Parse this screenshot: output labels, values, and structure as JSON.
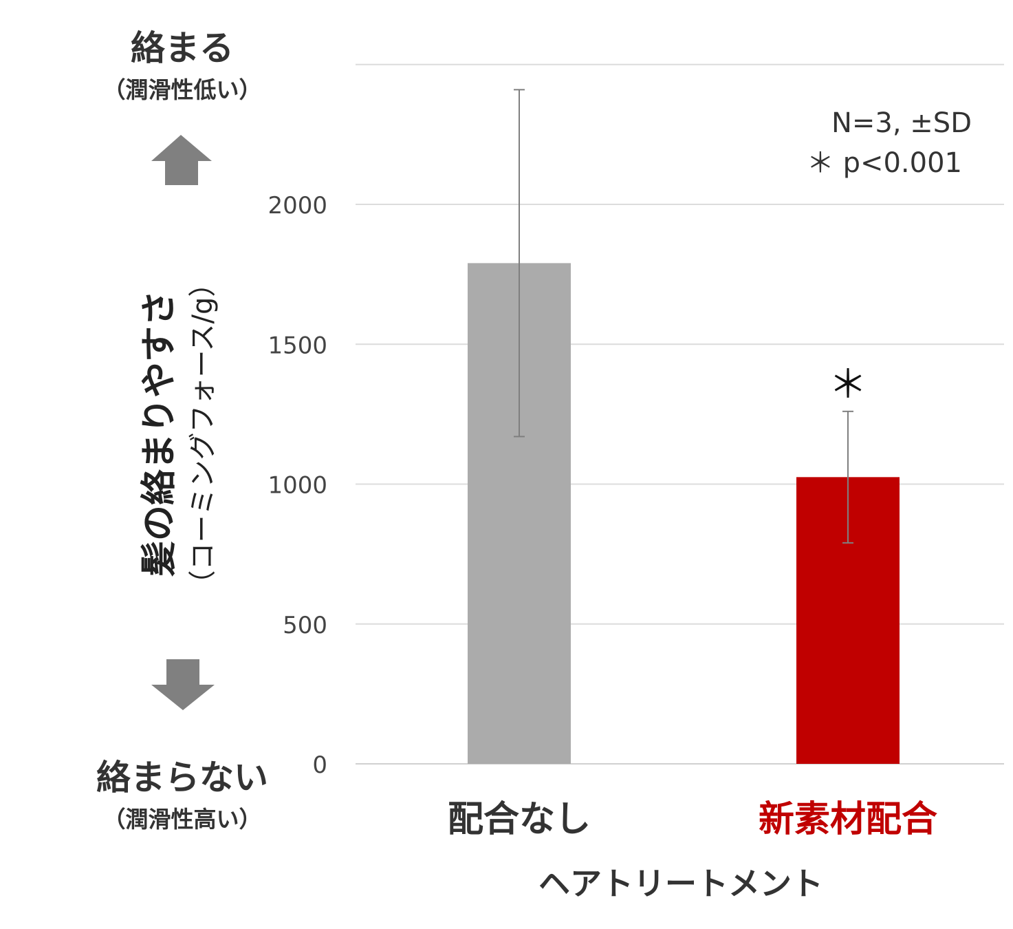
{
  "left_panel": {
    "top_label": "絡まる",
    "top_sub": "（潤滑性低い）",
    "bottom_label": "絡まらない",
    "bottom_sub": "（潤滑性高い）",
    "up_arrow_icon": "up-arrow-icon",
    "down_arrow_icon": "down-arrow-icon",
    "arrow_color": "#808080"
  },
  "y_axis": {
    "label": "髪の絡まりやすさ",
    "label_sub": "（コーミングフォース/g）"
  },
  "annotation": {
    "line1": "N=3, ±SD",
    "line2": "＊ p<0.001"
  },
  "chart_data": {
    "type": "bar",
    "title": "",
    "xlabel": "ヘアトリートメント",
    "ylabel": "髪の絡まりやすさ（コーミングフォース/g）",
    "categories": [
      "配合なし",
      "新素材配合"
    ],
    "values": [
      1790,
      1025
    ],
    "errors": [
      620,
      235
    ],
    "colors": [
      "#ababab",
      "#c00000"
    ],
    "category_label_colors": [
      "#333333",
      "#c00000"
    ],
    "significance_marks": [
      "",
      "＊"
    ],
    "ylim": [
      0,
      2500
    ],
    "yticks": [
      0,
      500,
      1000,
      1500,
      2000
    ],
    "grid": true,
    "legend": "none"
  }
}
